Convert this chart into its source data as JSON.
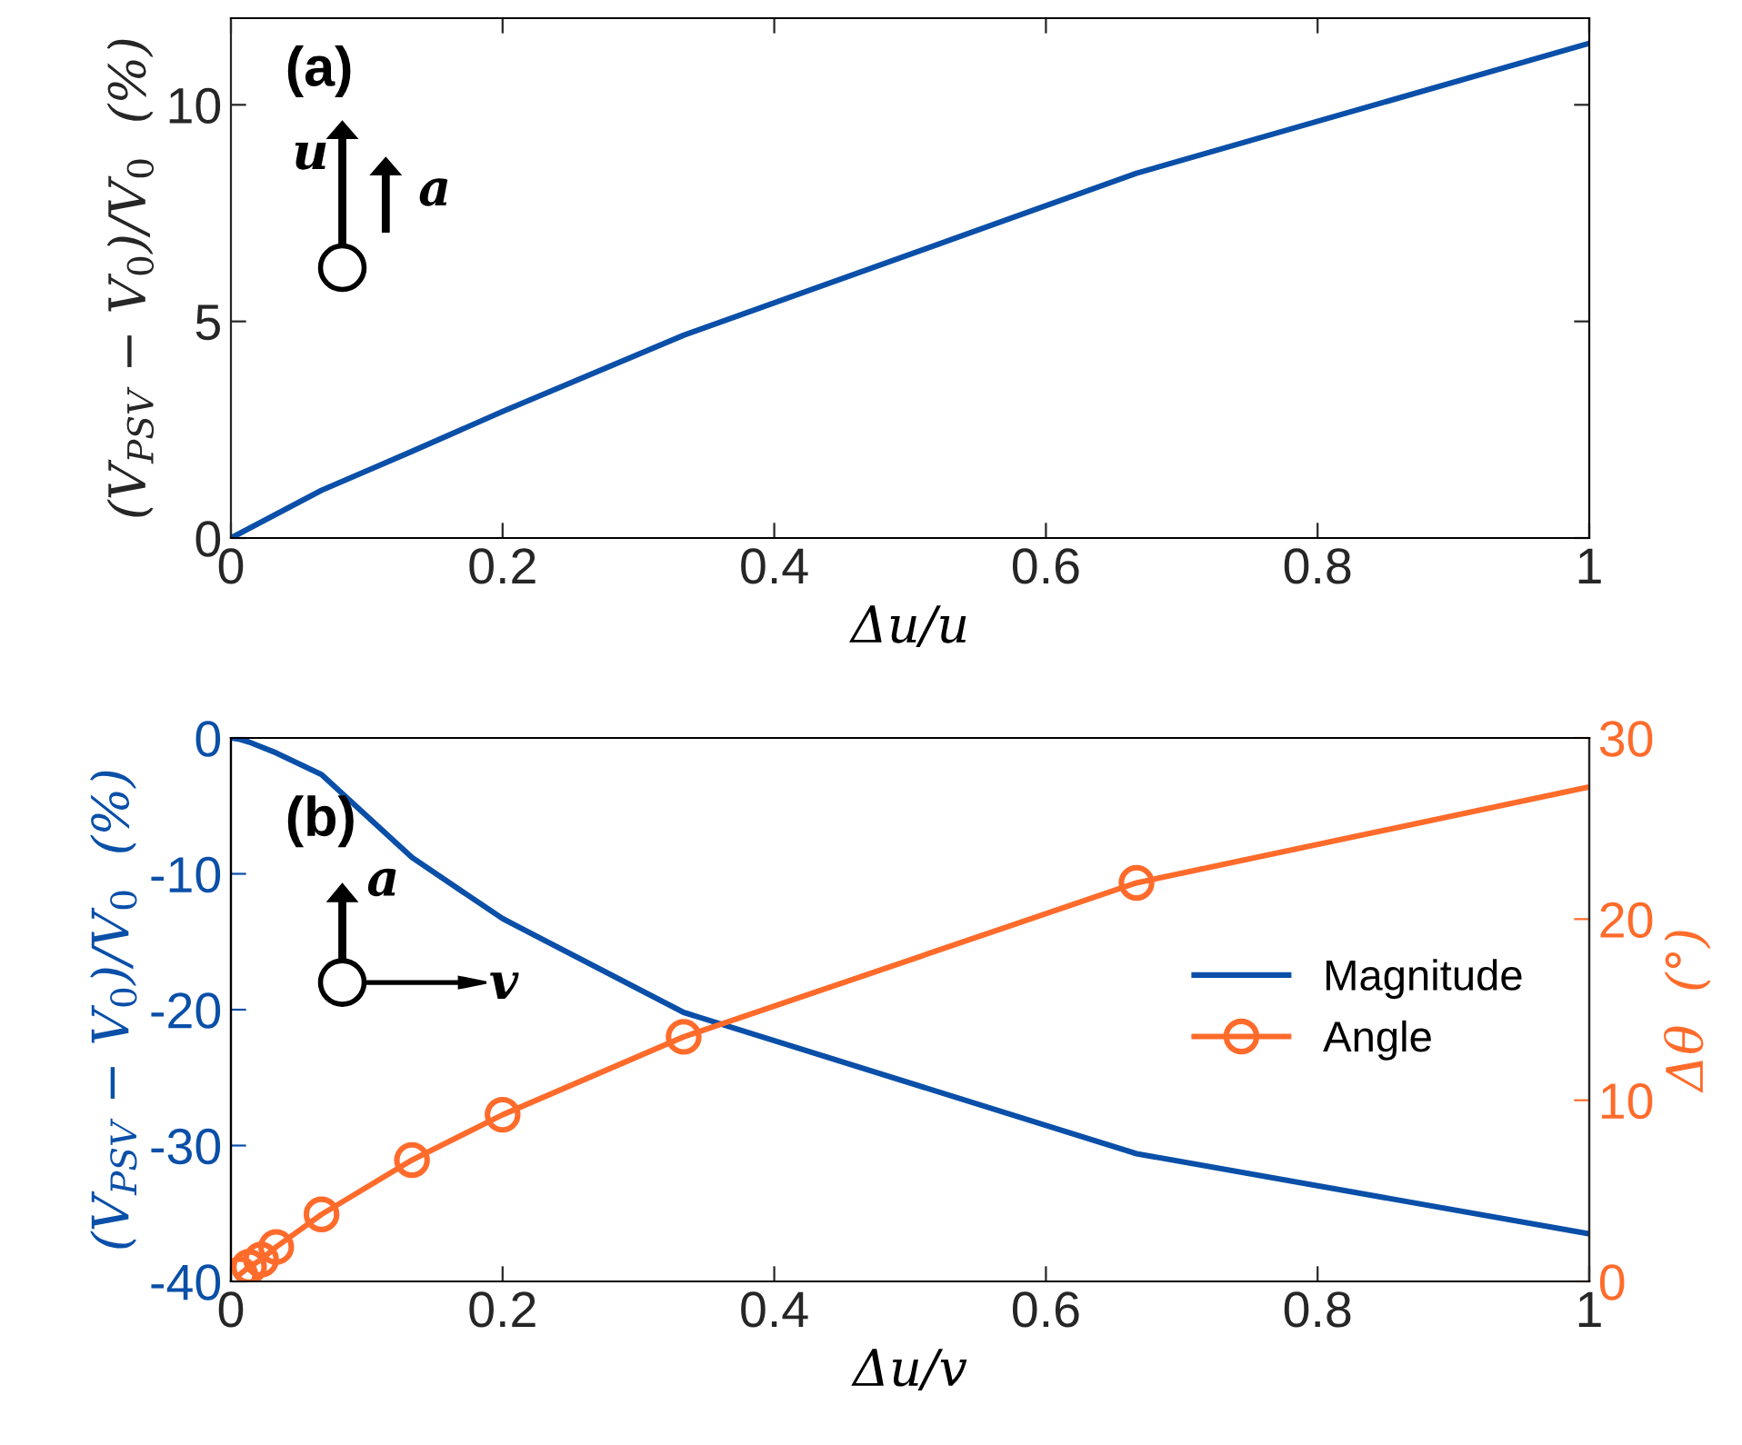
{
  "chart_data": [
    {
      "type": "line",
      "xlabel": "Δu/u",
      "ylabel": "(V$_{PSV}$ − V$_{0}$)/V$_{0}$  (%)",
      "annotations": [
        "(a)",
        "u",
        "a"
      ],
      "x": [
        0,
        0.0667,
        0.1333,
        0.2,
        0.3333,
        0.6667,
        1
      ],
      "series": [
        {
          "color": "#0a4fa8",
          "values": [
            0,
            1.1,
            2.0,
            2.92,
            4.68,
            8.42,
            11.42
          ]
        }
      ],
      "xlim": [
        0,
        1
      ],
      "xticks": [
        0,
        0.2,
        0.4,
        0.6,
        0.8,
        1
      ],
      "ylim": [
        0,
        12
      ],
      "yticks": [
        0,
        5,
        10
      ],
      "grid": false,
      "legend": false,
      "marker": "none"
    },
    {
      "type": "line",
      "xlabel": "Δu/v",
      "ylabel": "(V$_{PSV}$ − V$_{0}$)/V$_{0}$  (%)",
      "y2label": "Δθ  (°)",
      "annotations": [
        "(b)",
        "a",
        "v"
      ],
      "series": [
        {
          "name": "Magnitude",
          "color": "#0a4fa8",
          "marker": "none",
          "x": [
            0,
            0.0067,
            0.0133,
            0.0333,
            0.0667,
            0.1333,
            0.2,
            0.3333,
            0.6667,
            1
          ],
          "values": [
            0,
            -0.1,
            -0.3,
            -1.1,
            -2.7,
            -8.8,
            -13.3,
            -20.2,
            -30.6,
            -36.5
          ]
        },
        {
          "name": "Angle",
          "color": "#ff6b2b",
          "marker": "circle",
          "axis": "y2",
          "x": [
            0.0067,
            0.0133,
            0.0222,
            0.0333,
            0.0667,
            0.1333,
            0.2,
            0.3333,
            0.6667,
            1
          ],
          "values": [
            0.4,
            0.8,
            1.2,
            1.9,
            3.7,
            6.7,
            9.2,
            13.5,
            22.0,
            27.3
          ]
        }
      ],
      "xlim": [
        0,
        1
      ],
      "xticks": [
        0,
        0.2,
        0.4,
        0.6,
        0.8,
        1
      ],
      "ylim": [
        -40,
        0
      ],
      "yticks": [
        -40,
        -30,
        -20,
        -10,
        0
      ],
      "y2lim": [
        0,
        30
      ],
      "y2ticks": [
        0,
        10,
        20,
        30
      ],
      "grid": false,
      "legend": "right"
    }
  ]
}
